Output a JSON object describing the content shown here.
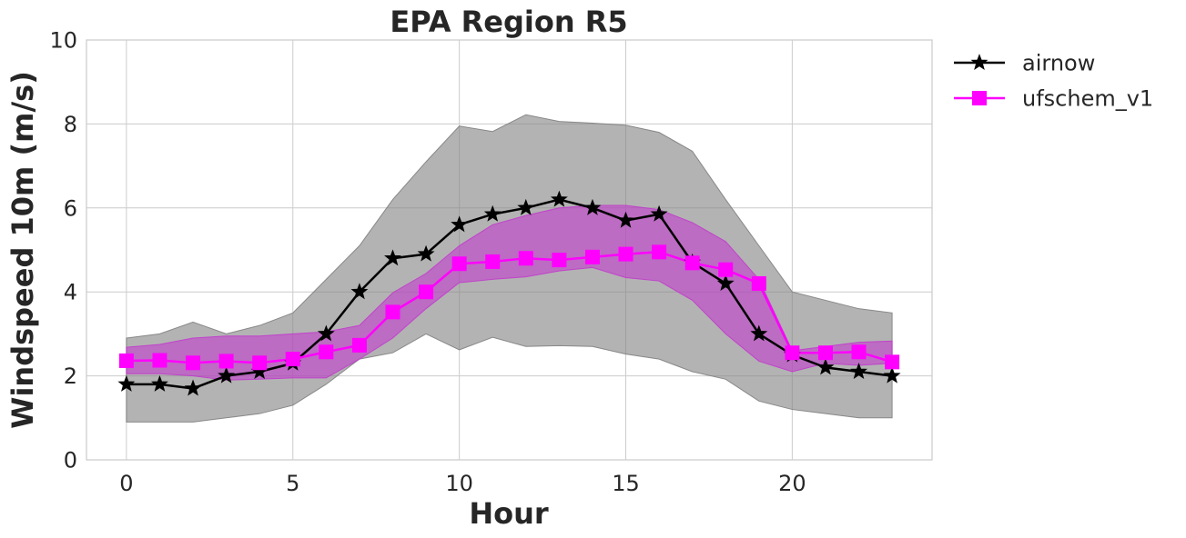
{
  "chart_data": {
    "type": "line",
    "title": "EPA Region R5",
    "xlabel": "Hour",
    "ylabel": "Windspeed 10m (m/s)",
    "xlim": [
      -1.2,
      24.2
    ],
    "ylim": [
      0,
      10
    ],
    "xticks": [
      0,
      5,
      10,
      15,
      20
    ],
    "yticks": [
      0,
      2,
      4,
      6,
      8,
      10
    ],
    "grid": true,
    "legend_position": "outside-top-right",
    "x": [
      0,
      1,
      2,
      3,
      4,
      5,
      6,
      7,
      8,
      9,
      10,
      11,
      12,
      13,
      14,
      15,
      16,
      17,
      18,
      19,
      20,
      21,
      22,
      23
    ],
    "series": [
      {
        "name": "airnow",
        "color": "#000000",
        "marker": "star",
        "values": [
          1.8,
          1.8,
          1.7,
          2.0,
          2.1,
          2.3,
          3.0,
          4.0,
          4.8,
          4.9,
          5.6,
          5.85,
          6.0,
          6.2,
          6.0,
          5.7,
          5.85,
          4.7,
          4.2,
          3.0,
          2.5,
          2.2,
          2.1,
          2.0
        ],
        "band_color": "#808080",
        "band_low": [
          0.9,
          0.9,
          0.9,
          1.0,
          1.1,
          1.3,
          1.8,
          2.4,
          2.55,
          3.0,
          2.62,
          2.92,
          2.7,
          2.72,
          2.7,
          2.52,
          2.4,
          2.1,
          1.92,
          1.4,
          1.2,
          1.1,
          1.0,
          1.0
        ],
        "band_high": [
          2.9,
          3.0,
          3.28,
          3.0,
          3.2,
          3.5,
          4.3,
          5.1,
          6.2,
          7.1,
          7.95,
          7.82,
          8.22,
          8.06,
          8.02,
          7.97,
          7.8,
          7.35,
          6.2,
          5.1,
          4.0,
          3.8,
          3.6,
          3.5
        ]
      },
      {
        "name": "ufschem_v1",
        "color": "#ff00ff",
        "marker": "square",
        "values": [
          2.36,
          2.37,
          2.31,
          2.35,
          2.31,
          2.4,
          2.57,
          2.73,
          3.52,
          4.0,
          4.67,
          4.72,
          4.8,
          4.76,
          4.83,
          4.9,
          4.95,
          4.69,
          4.53,
          4.2,
          2.55,
          2.55,
          2.57,
          2.33
        ],
        "band_color": "#c13ccc",
        "band_low": [
          2.05,
          2.05,
          2.0,
          1.9,
          1.92,
          1.95,
          1.95,
          2.4,
          2.9,
          3.6,
          4.22,
          4.3,
          4.36,
          4.5,
          4.58,
          4.34,
          4.26,
          3.8,
          3.0,
          2.35,
          2.1,
          2.3,
          2.25,
          2.3
        ],
        "band_high": [
          2.68,
          2.75,
          2.9,
          2.95,
          2.95,
          3.0,
          3.05,
          3.2,
          3.98,
          4.44,
          5.1,
          5.6,
          5.82,
          6.0,
          6.06,
          6.06,
          5.96,
          5.65,
          5.2,
          4.3,
          2.6,
          2.7,
          2.8,
          2.83
        ]
      }
    ]
  }
}
